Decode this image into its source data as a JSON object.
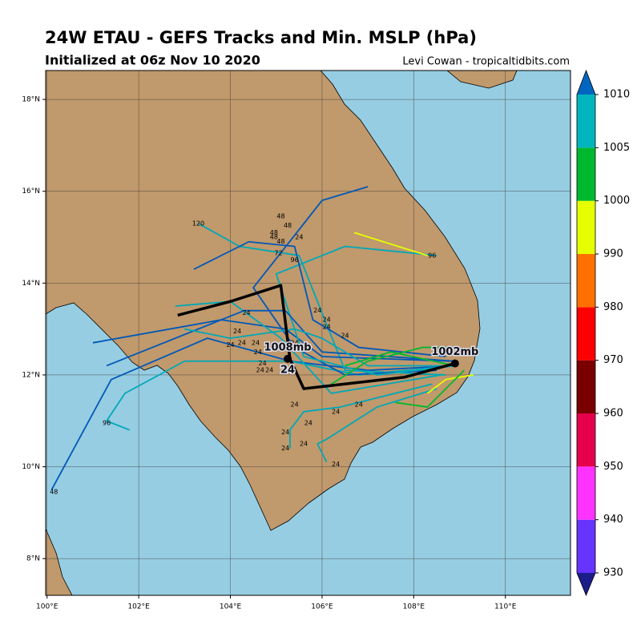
{
  "chart_data": {
    "type": "track-map",
    "title": "24W ETAU - GEFS Tracks and Min. MSLP (hPa)",
    "subtitle": "Initialized at 06z Nov 10 2020",
    "credit": "Levi Cowan - tropicaltidbits.com",
    "xlim": [
      99.97,
      111.42
    ],
    "ylim": [
      7.2,
      18.63
    ],
    "xticks": [
      {
        "value": 100,
        "label": "100°E"
      },
      {
        "value": 102,
        "label": "102°E"
      },
      {
        "value": 104,
        "label": "104°E"
      },
      {
        "value": 106,
        "label": "106°E"
      },
      {
        "value": 108,
        "label": "108°E"
      },
      {
        "value": 110,
        "label": "110°E"
      }
    ],
    "yticks": [
      {
        "value": 8,
        "label": "8°N"
      },
      {
        "value": 10,
        "label": "10°N"
      },
      {
        "value": 12,
        "label": "12°N"
      },
      {
        "value": 14,
        "label": "14°N"
      },
      {
        "value": 16,
        "label": "16°N"
      },
      {
        "value": 18,
        "label": "18°N"
      }
    ],
    "grid": true,
    "colorbar": {
      "levels": [
        930,
        940,
        950,
        960,
        970,
        980,
        990,
        1000,
        1005,
        1010
      ],
      "colors": [
        "#6633ff",
        "#ff33ff",
        "#e6004c",
        "#7a0000",
        "#ff0000",
        "#ff7000",
        "#e6ff00",
        "#00b82e",
        "#00b5be"
      ],
      "under_color": "#1c1c8a",
      "over_color": "#0066c0"
    },
    "tracks": [
      {
        "color": "#0058b8",
        "lon": [
          108.9,
          107.0,
          105.3,
          103.5,
          101.4,
          100.1
        ],
        "lat": [
          12.2,
          12.1,
          12.3,
          12.8,
          11.9,
          9.5
        ]
      },
      {
        "color": "#00a8b8",
        "lon": [
          108.9,
          106.8,
          105.3,
          103.0,
          101.7,
          101.3,
          101.8
        ],
        "lat": [
          12.2,
          12.0,
          12.3,
          12.3,
          11.6,
          11.0,
          10.8
        ]
      },
      {
        "color": "#00a8b8",
        "lon": [
          108.7,
          106.5,
          105.5,
          104.2,
          103.3
        ],
        "lat": [
          12.0,
          12.1,
          14.6,
          14.8,
          15.3
        ]
      },
      {
        "color": "#0058b8",
        "lon": [
          108.8,
          106.0,
          105.2,
          103.8,
          101.0
        ],
        "lat": [
          12.3,
          12.4,
          13.0,
          13.2,
          12.7
        ]
      },
      {
        "color": "#0058b8",
        "lon": [
          108.5,
          106.5,
          105.4,
          104.5,
          106.0,
          107.0
        ],
        "lat": [
          12.1,
          12.0,
          12.6,
          13.9,
          15.8,
          16.1
        ]
      },
      {
        "color": "#00a8b8",
        "lon": [
          108.9,
          107.2,
          105.6,
          105.0,
          106.5,
          108.5
        ],
        "lat": [
          12.2,
          12.0,
          12.4,
          14.2,
          14.8,
          14.6
        ]
      },
      {
        "color": "#00a8b8",
        "lon": [
          108.6,
          106.2,
          105.1,
          104.0,
          102.8
        ],
        "lat": [
          12.0,
          11.6,
          12.8,
          13.6,
          13.5
        ]
      },
      {
        "color": "#0058b8",
        "lon": [
          108.9,
          106.0,
          105.2,
          104.3,
          101.3
        ],
        "lat": [
          12.3,
          12.5,
          13.4,
          13.4,
          12.2
        ]
      },
      {
        "color": "#00a8b8",
        "lon": [
          108.4,
          106.4,
          105.6,
          105.3,
          105.3
        ],
        "lat": [
          11.8,
          11.3,
          11.2,
          10.8,
          10.4
        ]
      },
      {
        "color": "#00a8b8",
        "lon": [
          108.5,
          107.2,
          106.1,
          105.9,
          106.1
        ],
        "lat": [
          11.7,
          11.3,
          10.6,
          10.5,
          10.1
        ]
      },
      {
        "color": "#0058b8",
        "lon": [
          108.7,
          106.8,
          105.8,
          105.4,
          104.4,
          103.2
        ],
        "lat": [
          12.4,
          12.6,
          13.2,
          14.8,
          14.9,
          14.3
        ]
      },
      {
        "color": "#00a8b8",
        "lon": [
          108.9,
          107.0,
          106.0,
          105.4,
          104.0,
          103.0
        ],
        "lat": [
          12.2,
          12.2,
          12.8,
          13.0,
          12.8,
          13.0
        ]
      },
      {
        "color": "#e6ff00",
        "lon": [
          106.7,
          108.3
        ],
        "lat": [
          15.1,
          14.6
        ]
      },
      {
        "color": "#e6ff00",
        "lon": [
          109.3,
          108.7,
          108.3
        ],
        "lat": [
          12.0,
          11.9,
          11.6
        ]
      },
      {
        "color": "#00b82e",
        "lon": [
          108.9,
          107.5,
          106.5
        ],
        "lat": [
          12.2,
          12.5,
          12.2
        ]
      },
      {
        "color": "#00b82e",
        "lon": [
          109.0,
          108.2,
          107.0,
          106.2
        ],
        "lat": [
          12.6,
          12.6,
          12.3,
          11.8
        ]
      },
      {
        "color": "#00b82e",
        "lon": [
          109.1,
          108.6,
          108.3,
          107.6
        ],
        "lat": [
          12.1,
          11.6,
          11.3,
          11.4
        ]
      }
    ],
    "mean_track": {
      "lon": [
        108.9,
        107.8,
        105.6,
        105.3,
        105.1,
        104.0,
        102.85
      ],
      "lat": [
        12.25,
        11.95,
        11.7,
        12.35,
        13.95,
        13.6,
        13.3
      ]
    },
    "points": [
      {
        "label": "1008mb",
        "lon": 105.25,
        "lat": 12.35
      },
      {
        "label": "1002mb",
        "lon": 108.9,
        "lat": 12.25
      }
    ],
    "point_hour": "24",
    "hour_labels": [
      {
        "text": "24",
        "lon": 104.35,
        "lat": 13.35
      },
      {
        "text": "24",
        "lon": 104.15,
        "lat": 12.95
      },
      {
        "text": "24",
        "lon": 104.25,
        "lat": 12.7
      },
      {
        "text": "24",
        "lon": 104.0,
        "lat": 12.65
      },
      {
        "text": "24",
        "lon": 104.55,
        "lat": 12.7
      },
      {
        "text": "24",
        "lon": 104.6,
        "lat": 12.5
      },
      {
        "text": "24",
        "lon": 104.7,
        "lat": 12.25
      },
      {
        "text": "24",
        "lon": 104.65,
        "lat": 12.1
      },
      {
        "text": "24",
        "lon": 104.85,
        "lat": 12.1
      },
      {
        "text": "24",
        "lon": 105.4,
        "lat": 11.35
      },
      {
        "text": "24",
        "lon": 105.4,
        "lat": 12.7
      },
      {
        "text": "24",
        "lon": 105.2,
        "lat": 10.75
      },
      {
        "text": "24",
        "lon": 105.2,
        "lat": 10.4
      },
      {
        "text": "24",
        "lon": 105.6,
        "lat": 10.5
      },
      {
        "text": "24",
        "lon": 105.7,
        "lat": 10.95
      },
      {
        "text": "24",
        "lon": 106.3,
        "lat": 11.2
      },
      {
        "text": "24",
        "lon": 106.8,
        "lat": 11.35
      },
      {
        "text": "24",
        "lon": 106.3,
        "lat": 10.05
      },
      {
        "text": "24",
        "lon": 105.9,
        "lat": 13.4
      },
      {
        "text": "24",
        "lon": 106.1,
        "lat": 13.2
      },
      {
        "text": "24",
        "lon": 106.1,
        "lat": 13.05
      },
      {
        "text": "24",
        "lon": 106.5,
        "lat": 12.85
      },
      {
        "text": "24",
        "lon": 105.5,
        "lat": 15.0
      },
      {
        "text": "48",
        "lon": 104.95,
        "lat": 15.1
      },
      {
        "text": "48",
        "lon": 104.95,
        "lat": 15.0
      },
      {
        "text": "48",
        "lon": 105.1,
        "lat": 14.9
      },
      {
        "text": "48",
        "lon": 105.1,
        "lat": 15.45
      },
      {
        "text": "48",
        "lon": 105.25,
        "lat": 15.25
      },
      {
        "text": "48",
        "lon": 100.15,
        "lat": 9.45
      },
      {
        "text": "72",
        "lon": 105.05,
        "lat": 14.65
      },
      {
        "text": "96",
        "lon": 105.4,
        "lat": 14.5
      },
      {
        "text": "96",
        "lon": 108.4,
        "lat": 14.6
      },
      {
        "text": "96",
        "lon": 101.3,
        "lat": 10.95
      },
      {
        "text": "120",
        "lon": 103.3,
        "lat": 15.3
      }
    ]
  }
}
